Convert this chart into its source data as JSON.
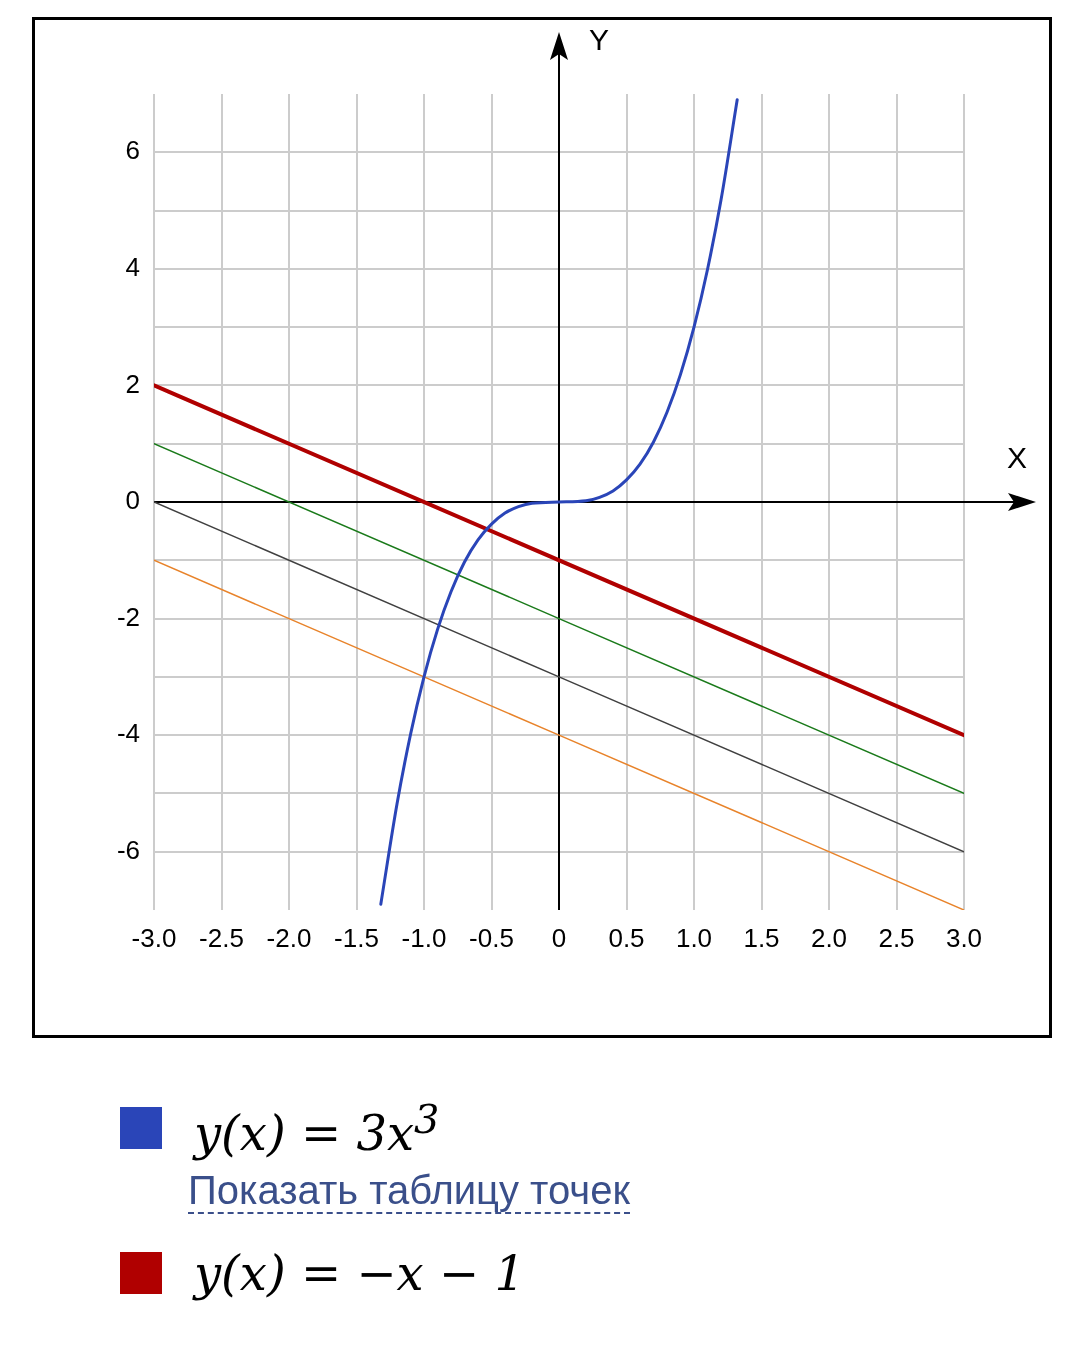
{
  "chart_data": {
    "type": "line",
    "xlabel": "X",
    "ylabel": "Y",
    "xlim": [
      -3,
      3
    ],
    "ylim": [
      -7,
      7
    ],
    "xticks": [
      {
        "value": -3,
        "label": "-3.0"
      },
      {
        "value": -2.5,
        "label": "-2.5"
      },
      {
        "value": -2,
        "label": "-2.0"
      },
      {
        "value": -1.5,
        "label": "-1.5"
      },
      {
        "value": -1,
        "label": "-1.0"
      },
      {
        "value": -0.5,
        "label": "-0.5"
      },
      0,
      {
        "value": 0.5,
        "label": "0.5"
      },
      {
        "value": 1,
        "label": "1.0"
      },
      {
        "value": 1.5,
        "label": "1.5"
      },
      {
        "value": 2,
        "label": "2.0"
      },
      {
        "value": 2.5,
        "label": "2.5"
      },
      {
        "value": 3,
        "label": "3.0"
      }
    ],
    "yticks": [
      -6,
      {
        "value": -5,
        "label": null
      },
      -4,
      {
        "value": -3,
        "label": null
      },
      -2,
      {
        "value": -1,
        "label": null
      },
      0,
      {
        "value": 1,
        "label": null
      },
      2,
      {
        "value": 3,
        "label": null
      },
      4,
      {
        "value": 5,
        "label": null
      },
      6
    ],
    "grid": true,
    "legend": "bottom",
    "marker": "none",
    "line_style": "solid",
    "annotations": [
      "Показать таблицу точек"
    ],
    "series": [
      {
        "name": "y(x) = 3x$^{3}$",
        "color": "#2a45b8",
        "x": [
          -1.32,
          -1.2,
          -1.1,
          -1,
          -0.9,
          -0.8,
          -0.7,
          -0.6,
          -0.5,
          -0.4,
          -0.3,
          -0.2,
          0,
          0.2,
          0.3,
          0.4,
          0.5,
          0.6,
          0.7,
          0.8,
          0.9,
          1,
          1.1,
          1.2,
          1.32
        ],
        "values": [
          -6.9,
          -5.18,
          -3.99,
          -3,
          -2.19,
          -1.54,
          -1.03,
          -0.65,
          -0.38,
          -0.19,
          -0.08,
          -0.02,
          0,
          0.02,
          0.08,
          0.19,
          0.38,
          0.65,
          1.03,
          1.54,
          2.19,
          3,
          3.99,
          5.18,
          6.9
        ]
      },
      {
        "name": "y(x) = −x − 1",
        "color": "#b00000",
        "x": [
          -3,
          3
        ],
        "values": [
          2,
          -4
        ]
      },
      {
        "color": "#1a7a1a",
        "x": [
          -3,
          3
        ],
        "values": [
          1,
          -5
        ]
      },
      {
        "color": "#404040",
        "x": [
          -3,
          3
        ],
        "values": [
          0,
          -6
        ]
      },
      {
        "color": "#e8832a",
        "x": [
          -3,
          3
        ],
        "values": [
          -1,
          -7
        ]
      }
    ]
  }
}
